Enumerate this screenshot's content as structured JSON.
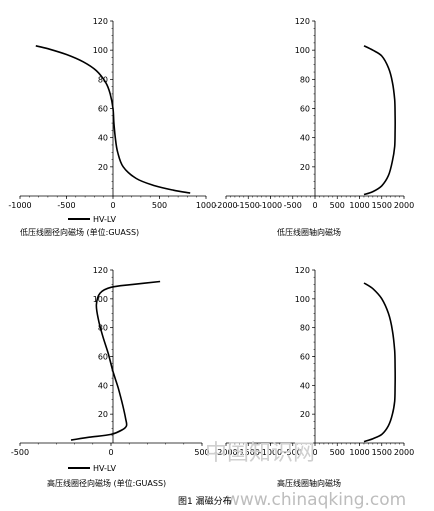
{
  "chart_data": [
    {
      "type": "line",
      "id": "lv-radial",
      "caption": "低压线圈径向磁场 (单位:GUASS)",
      "xlim": [
        -1000,
        1000
      ],
      "ylim": [
        0,
        120
      ],
      "xticks": [
        -1000,
        -500,
        0,
        500,
        1000
      ],
      "yticks": [
        20,
        40,
        60,
        80,
        100,
        120
      ],
      "ytick_labels": [
        "20",
        "40",
        "60",
        "80",
        "100",
        "120"
      ],
      "legend": "HV-LV",
      "series": [
        {
          "x": [
            -830,
            -700,
            -500,
            -320,
            -180,
            -80,
            -30,
            0,
            10,
            25,
            50,
            110,
            250,
            450,
            650,
            830
          ],
          "y": [
            103,
            101,
            97,
            92,
            86,
            78,
            70,
            60,
            50,
            40,
            30,
            20,
            12,
            7,
            4,
            2
          ]
        }
      ]
    },
    {
      "type": "line",
      "id": "lv-axial",
      "caption": "低压线圈轴向磁场",
      "xlim": [
        -2000,
        2000
      ],
      "ylim": [
        0,
        120
      ],
      "xticks": [
        -2000,
        -1500,
        -1000,
        -500,
        0,
        500,
        1000,
        1500,
        2000
      ],
      "xtick_labels": [
        "-2000",
        "-1500",
        "-1000",
        "-500",
        "0",
        "500",
        "1000",
        "1500",
        "2000"
      ],
      "yticks": [
        20,
        40,
        60,
        80,
        100,
        120
      ],
      "series": [
        {
          "x": [
            1100,
            1300,
            1500,
            1650,
            1740,
            1790,
            1800,
            1800,
            1790,
            1740,
            1650,
            1500,
            1300,
            1100
          ],
          "y": [
            103,
            100,
            96,
            88,
            78,
            66,
            55,
            45,
            34,
            24,
            14,
            7,
            3,
            1
          ]
        }
      ]
    },
    {
      "type": "line",
      "id": "hv-radial",
      "caption": "高压线圈径向磁场 (单位:GUASS)",
      "xlim": [
        -500,
        500
      ],
      "ylim": [
        0,
        120
      ],
      "xticks": [
        -500,
        0,
        500
      ],
      "yticks": [
        20,
        40,
        60,
        80,
        100,
        120
      ],
      "legend": "HV-LV",
      "series": [
        {
          "x": [
            270,
            120,
            0,
            -60,
            -80,
            -70,
            -45,
            -15,
            10,
            40,
            65,
            80,
            85,
            60,
            0,
            -120,
            -220
          ],
          "y": [
            112,
            110,
            108,
            104,
            96,
            86,
            74,
            62,
            50,
            38,
            26,
            17,
            12,
            9,
            6,
            4,
            2
          ]
        }
      ]
    },
    {
      "type": "line",
      "id": "hv-axial",
      "caption": "高压线圈轴向磁场",
      "xlim": [
        -2000,
        2000
      ],
      "ylim": [
        0,
        120
      ],
      "xticks": [
        -2000,
        -1500,
        -1000,
        -500,
        0,
        500,
        1000,
        1500,
        2000
      ],
      "xtick_labels": [
        "-2000",
        "-1500",
        "-1000",
        "-500",
        "0",
        "500",
        "1000",
        "1500",
        "2000"
      ],
      "yticks": [
        20,
        40,
        60,
        80,
        100,
        120
      ],
      "series": [
        {
          "x": [
            1100,
            1300,
            1500,
            1650,
            1740,
            1790,
            1800,
            1800,
            1790,
            1740,
            1650,
            1500,
            1300,
            1100
          ],
          "y": [
            111,
            107,
            100,
            90,
            78,
            64,
            52,
            40,
            29,
            20,
            12,
            6,
            3,
            1
          ]
        }
      ]
    }
  ],
  "figure_caption": "图1 漏磁分布",
  "watermark": {
    "cn": "中国知识网",
    "en": "www.chinaqking.com"
  },
  "colors": {
    "line": "#000000",
    "watermark": "#c8c8c8"
  }
}
